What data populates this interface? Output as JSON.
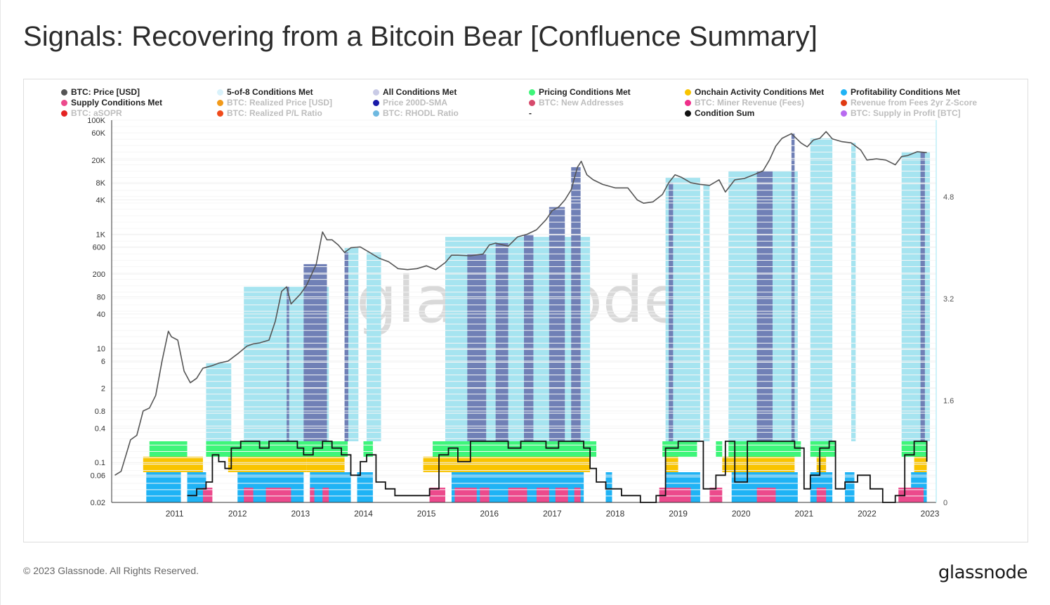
{
  "title": "Signals: Recovering from a Bitcoin Bear [Confluence Summary]",
  "footer": "© 2023 Glassnode. All Rights Reserved.",
  "brand": "glassnode",
  "watermark": "glassnode",
  "legend": [
    {
      "label": "BTC: Price [USD]",
      "color": "#555555",
      "active": true
    },
    {
      "label": "5-of-8 Conditions Met",
      "color": "#d9f2fb",
      "active": true
    },
    {
      "label": "All Conditions Met",
      "color": "#c9cbe6",
      "active": true
    },
    {
      "label": "Pricing Conditions Met",
      "color": "#3ef57a",
      "active": true
    },
    {
      "label": "Onchain Activity Conditions Met",
      "color": "#f9c400",
      "active": true
    },
    {
      "label": "Profitability Conditions Met",
      "color": "#1fb3f5",
      "active": true
    },
    {
      "label": "Supply Conditions Met",
      "color": "#ec4a8c",
      "active": true
    },
    {
      "label": "BTC: Realized Price [USD]",
      "color": "#f29a1a",
      "active": false
    },
    {
      "label": "Price 200D-SMA",
      "color": "#1a1aa8",
      "active": false
    },
    {
      "label": "BTC: New Addresses",
      "color": "#d64a6c",
      "active": false
    },
    {
      "label": "BTC: Miner Revenue (Fees)",
      "color": "#ef2f8a",
      "active": false
    },
    {
      "label": "Revenue from Fees 2yr Z-Score",
      "color": "#e03a12",
      "active": false
    },
    {
      "label": "BTC: aSOPR",
      "color": "#e42222",
      "active": false
    },
    {
      "label": "BTC: Realized P/L Ratio",
      "color": "#f04a1a",
      "active": false
    },
    {
      "label": "BTC: RHODL Ratio",
      "color": "#6eb9e0",
      "active": false
    },
    {
      "label": "-",
      "color": null,
      "active": true
    },
    {
      "label": "Condition Sum",
      "color": "#111111",
      "active": true
    },
    {
      "label": "BTC: Supply in Profit [BTC]",
      "color": "#b86af0",
      "active": false
    }
  ],
  "colors": {
    "price_line": "#555555",
    "five_of_eight": "#a6e4f0",
    "all_conditions": "#7080b6",
    "pricing": "#3ef57a",
    "onchain": "#f9c400",
    "profitability": "#1fb3f5",
    "supply": "#ec4a8c",
    "condition_sum": "#111111"
  },
  "chart_data": {
    "type": "line",
    "x_ticks": [
      "2011",
      "2012",
      "2013",
      "2014",
      "2015",
      "2016",
      "2017",
      "2018",
      "2019",
      "2020",
      "2021",
      "2022",
      "2023"
    ],
    "y_left_scale": "log",
    "y_left_ticks": [
      "100K",
      "60K",
      "20K",
      "8K",
      "4K",
      "1K",
      "600",
      "200",
      "80",
      "40",
      "10",
      "6",
      "2",
      "0.8",
      "0.4",
      "0.1",
      "0.06",
      "0.02"
    ],
    "y_left_tick_values": [
      100000,
      60000,
      20000,
      8000,
      4000,
      1000,
      600,
      200,
      80,
      40,
      10,
      6,
      2,
      0.8,
      0.4,
      0.1,
      0.06,
      0.02
    ],
    "y_right_ticks": [
      "4.8",
      "3.2",
      "1.6",
      "0"
    ],
    "y_right_tick_values": [
      4.8,
      3.2,
      1.6,
      0
    ],
    "ylim_right": [
      0,
      6
    ],
    "grid": true,
    "legend_position": "top",
    "series": [
      {
        "name": "BTC: Price [USD]",
        "x": [
          2010.55,
          2010.65,
          2010.8,
          2010.9,
          2011.0,
          2011.1,
          2011.2,
          2011.3,
          2011.4,
          2011.45,
          2011.55,
          2011.65,
          2011.75,
          2011.85,
          2011.95,
          2012.1,
          2012.2,
          2012.35,
          2012.5,
          2012.65,
          2012.75,
          2012.85,
          2013.0,
          2013.1,
          2013.2,
          2013.28,
          2013.35,
          2013.5,
          2013.6,
          2013.75,
          2013.85,
          2013.92,
          2014.0,
          2014.1,
          2014.2,
          2014.3,
          2014.45,
          2014.6,
          2014.75,
          2014.9,
          2015.05,
          2015.2,
          2015.35,
          2015.5,
          2015.65,
          2015.8,
          2015.9,
          2016.0,
          2016.2,
          2016.4,
          2016.5,
          2016.6,
          2016.8,
          2016.95,
          2017.1,
          2017.25,
          2017.4,
          2017.5,
          2017.6,
          2017.7,
          2017.8,
          2017.9,
          2017.96,
          2018.05,
          2018.15,
          2018.3,
          2018.5,
          2018.7,
          2018.85,
          2018.95,
          2019.1,
          2019.25,
          2019.35,
          2019.45,
          2019.55,
          2019.7,
          2019.85,
          2020.0,
          2020.15,
          2020.25,
          2020.4,
          2020.55,
          2020.7,
          2020.85,
          2020.95,
          2021.05,
          2021.15,
          2021.3,
          2021.45,
          2021.55,
          2021.65,
          2021.75,
          2021.85,
          2021.95,
          2022.1,
          2022.25,
          2022.4,
          2022.5,
          2022.65,
          2022.8,
          2022.95,
          2023.05,
          2023.15,
          2023.3,
          2023.45
        ],
        "values": [
          0.06,
          0.07,
          0.25,
          0.3,
          0.8,
          0.9,
          1.5,
          6,
          20,
          16,
          14,
          4,
          2.5,
          3,
          4.5,
          5,
          5.5,
          6,
          8,
          11,
          12,
          12.5,
          14,
          30,
          100,
          120,
          60,
          90,
          130,
          300,
          1100,
          800,
          800,
          650,
          480,
          580,
          600,
          480,
          380,
          330,
          250,
          240,
          250,
          280,
          240,
          320,
          430,
          430,
          420,
          450,
          650,
          700,
          620,
          900,
          1000,
          1200,
          1800,
          2600,
          3000,
          4000,
          6000,
          15000,
          19000,
          11000,
          9000,
          7500,
          6500,
          6500,
          4000,
          3500,
          3700,
          5000,
          8000,
          11000,
          10000,
          8000,
          7500,
          7200,
          9000,
          5500,
          9000,
          9500,
          11000,
          13000,
          20000,
          35000,
          48000,
          58000,
          40000,
          34000,
          45000,
          48000,
          63000,
          47000,
          42000,
          40000,
          30000,
          20000,
          21000,
          20000,
          16500,
          23000,
          24000,
          28000,
          27000
        ]
      },
      {
        "name": "Condition Sum",
        "x": [
          2011.7,
          2011.85,
          2012.0,
          2012.1,
          2012.2,
          2012.3,
          2012.4,
          2012.55,
          2012.7,
          2012.85,
          2013.0,
          2013.3,
          2013.45,
          2013.55,
          2013.7,
          2013.85,
          2014.0,
          2014.15,
          2014.3,
          2014.45,
          2014.55,
          2014.7,
          2014.85,
          2015.0,
          2015.2,
          2015.4,
          2015.55,
          2015.7,
          2015.85,
          2016.0,
          2016.2,
          2016.4,
          2016.6,
          2016.8,
          2017.0,
          2017.2,
          2017.4,
          2017.6,
          2017.8,
          2018.0,
          2018.1,
          2018.2,
          2018.35,
          2018.6,
          2018.9,
          2019.15,
          2019.3,
          2019.5,
          2019.7,
          2019.9,
          2020.1,
          2020.25,
          2020.4,
          2020.6,
          2020.85,
          2021.0,
          2021.2,
          2021.35,
          2021.5,
          2021.6,
          2021.75,
          2021.9,
          2022.0,
          2022.15,
          2022.35,
          2022.55,
          2022.75,
          2022.95,
          2023.1,
          2023.25,
          2023.45
        ],
        "values": [
          1,
          2,
          3,
          7,
          6,
          5,
          8,
          9,
          9,
          8,
          9,
          9,
          8,
          7,
          8,
          9,
          8,
          7,
          4,
          6,
          7,
          3,
          2,
          1,
          1,
          1,
          2,
          7,
          8,
          6,
          9,
          9,
          9,
          8,
          9,
          9,
          8,
          9,
          9,
          8,
          5,
          3,
          2,
          1,
          0,
          1,
          8,
          9,
          9,
          2,
          4,
          9,
          3,
          9,
          9,
          9,
          9,
          8,
          2,
          4,
          8,
          9,
          2,
          3,
          4,
          2,
          0,
          1,
          7,
          9,
          6
        ]
      }
    ],
    "bands": {
      "all_conditions": [
        [
          2013.28,
          2013.32
        ],
        [
          2013.55,
          2013.92
        ],
        [
          2014.2,
          2014.26
        ],
        [
          2016.15,
          2016.45
        ],
        [
          2016.6,
          2016.8
        ],
        [
          2017.05,
          2017.2
        ],
        [
          2017.45,
          2017.7
        ],
        [
          2017.8,
          2017.95
        ],
        [
          2019.35,
          2019.42
        ],
        [
          2020.75,
          2021.0
        ],
        [
          2021.3,
          2021.35
        ],
        [
          2023.35,
          2023.42
        ]
      ],
      "five_of_eight": [
        [
          2012.0,
          2012.4
        ],
        [
          2012.6,
          2013.95
        ],
        [
          2014.2,
          2014.42
        ],
        [
          2014.55,
          2014.78
        ],
        [
          2015.8,
          2018.1
        ],
        [
          2019.3,
          2019.85
        ],
        [
          2019.9,
          2020.0
        ],
        [
          2020.3,
          2021.4
        ],
        [
          2021.6,
          2021.95
        ],
        [
          2022.25,
          2022.32
        ],
        [
          2023.05,
          2023.5
        ]
      ],
      "pricing": [
        [
          2011.1,
          2011.7
        ],
        [
          2012.0,
          2014.25
        ],
        [
          2014.5,
          2014.65
        ],
        [
          2015.6,
          2018.2
        ],
        [
          2019.25,
          2019.8
        ],
        [
          2020.1,
          2020.2
        ],
        [
          2020.3,
          2021.45
        ],
        [
          2021.6,
          2022.0
        ],
        [
          2023.05,
          2023.45
        ]
      ],
      "onchain": [
        [
          2011.0,
          2011.95
        ],
        [
          2012.35,
          2013.6
        ],
        [
          2013.6,
          2014.2
        ],
        [
          2015.45,
          2018.1
        ],
        [
          2019.3,
          2019.5
        ],
        [
          2020.2,
          2021.35
        ],
        [
          2021.7,
          2021.85
        ],
        [
          2023.25,
          2023.45
        ]
      ],
      "profitability": [
        [
          2011.05,
          2011.6
        ],
        [
          2011.7,
          2012.0
        ],
        [
          2012.5,
          2013.55
        ],
        [
          2013.65,
          2014.3
        ],
        [
          2014.4,
          2014.65
        ],
        [
          2015.9,
          2018.0
        ],
        [
          2018.35,
          2018.45
        ],
        [
          2019.3,
          2019.85
        ],
        [
          2020.35,
          2021.4
        ],
        [
          2021.6,
          2021.95
        ],
        [
          2022.15,
          2022.3
        ],
        [
          2023.2,
          2023.45
        ]
      ],
      "supply": [
        [
          2011.95,
          2012.1
        ],
        [
          2012.6,
          2012.75
        ],
        [
          2012.95,
          2013.35
        ],
        [
          2013.65,
          2013.72
        ],
        [
          2013.85,
          2013.95
        ],
        [
          2015.55,
          2015.8
        ],
        [
          2015.95,
          2016.3
        ],
        [
          2016.35,
          2016.5
        ],
        [
          2016.8,
          2017.1
        ],
        [
          2017.25,
          2017.45
        ],
        [
          2017.55,
          2017.75
        ],
        [
          2017.85,
          2017.95
        ],
        [
          2019.2,
          2019.7
        ],
        [
          2020.0,
          2020.2
        ],
        [
          2020.75,
          2021.05
        ],
        [
          2021.7,
          2021.85
        ],
        [
          2023.0,
          2023.4
        ]
      ]
    }
  }
}
